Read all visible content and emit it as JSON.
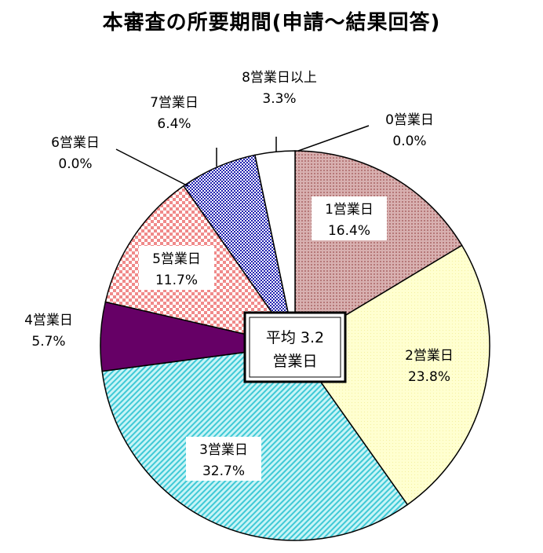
{
  "chart_data": {
    "type": "pie",
    "title": "本審査の所要期間(申請～結果回答)",
    "center_label": [
      "平均 3.2",
      "営業日"
    ],
    "slices": [
      {
        "label": "0営業日",
        "value": 0.0,
        "value_label": "0.0%",
        "color": "#ffffff"
      },
      {
        "label": "1営業日",
        "value": 16.4,
        "value_label": "16.4%",
        "color": "#c99a9a"
      },
      {
        "label": "2営業日",
        "value": 23.8,
        "value_label": "23.8%",
        "color": "#ffffcc"
      },
      {
        "label": "3営業日",
        "value": 32.7,
        "value_label": "32.7%",
        "color": "#9fe8ee"
      },
      {
        "label": "4営業日",
        "value": 5.7,
        "value_label": "5.7%",
        "color": "#660066"
      },
      {
        "label": "5営業日",
        "value": 11.7,
        "value_label": "11.7%",
        "color": "#f5a3a3"
      },
      {
        "label": "6営業日",
        "value": 0.0,
        "value_label": "0.0%",
        "color": "#ffffff"
      },
      {
        "label": "7営業日",
        "value": 6.4,
        "value_label": "6.4%",
        "color": "#3333cc"
      },
      {
        "label": "8営業日以上",
        "value": 3.3,
        "value_label": "3.3%",
        "color": "#ffffff"
      }
    ]
  }
}
